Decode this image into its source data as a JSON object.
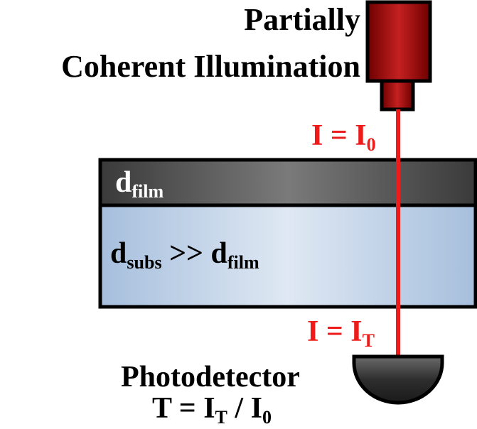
{
  "source": {
    "line1": "Partially",
    "line2": "Coherent Illumination"
  },
  "intensity_in": {
    "main": "I = I",
    "sub": "0"
  },
  "intensity_out": {
    "main": "I = I",
    "sub": "T"
  },
  "film": {
    "main": "d",
    "sub": "film"
  },
  "substrate": {
    "main1": "d",
    "sub1": "subs",
    "mid": " >> d",
    "sub2": "film"
  },
  "detector": {
    "title": "Photodetector",
    "formula_a": "T = I",
    "formula_a_sub": "T",
    "formula_b": " / I",
    "formula_b_sub": "0"
  },
  "colors": {
    "beam": "#ee1b1b",
    "lamp_dark": "#6e0000",
    "lamp_light": "#c42020",
    "film_dark": "#3a3a3a",
    "film_light": "#7a7a7a",
    "substrate_light": "#dfe8f3",
    "substrate_dark": "#a6bfdd",
    "detector": "#2e2e2e"
  }
}
